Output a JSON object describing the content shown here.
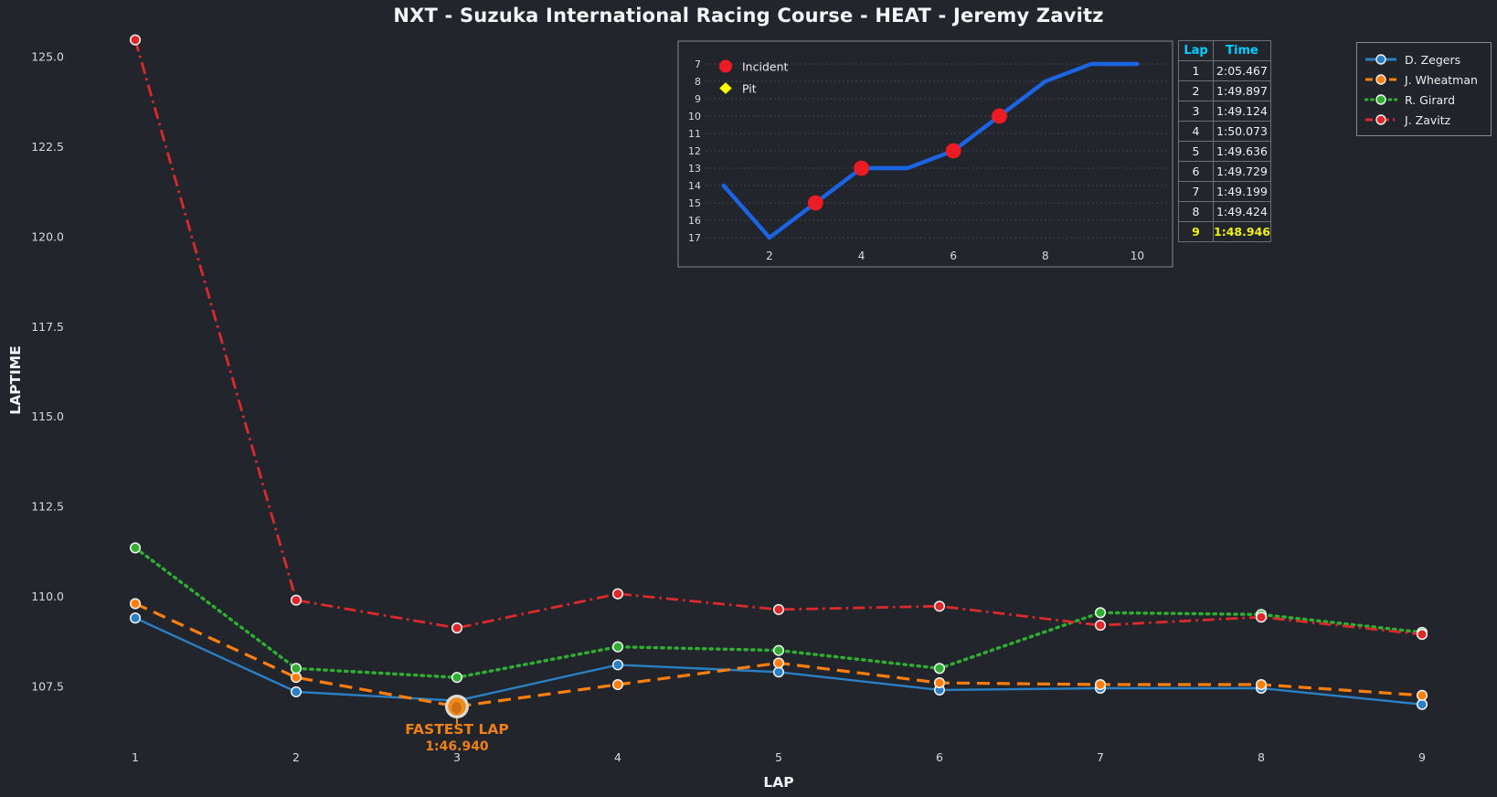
{
  "title": "NXT - Suzuka International Racing Course - HEAT - Jeremy Zavitz",
  "colors": {
    "background": "#22252b",
    "text": "#f0f1f2",
    "tick_text": "#d8dadd",
    "grid_dots": "#45484d",
    "panel_border": "#85888d",
    "table_header": "#00cfff",
    "fastest_row": "#f2f20a",
    "annotation_orange": "#f08018",
    "inset_line_blue": "#1b64e4",
    "incident_red": "#ec1c24",
    "pit_yellow": "#ffff00"
  },
  "chart_data": [
    {
      "type": "line",
      "name": "laptime-by-lap",
      "title": "NXT - Suzuka International Racing Course - HEAT - Jeremy Zavitz",
      "xlabel": "LAP",
      "ylabel": "LAPTIME",
      "x": [
        1,
        2,
        3,
        4,
        5,
        6,
        7,
        8,
        9
      ],
      "xlim": [
        0.65,
        9.45
      ],
      "ylim": [
        106.5,
        125.7
      ],
      "yticks": [
        107.5,
        110.0,
        112.5,
        115.0,
        117.5,
        120.0,
        122.5,
        125.0
      ],
      "grid": false,
      "legend_position": "upper right",
      "series": [
        {
          "name": "D. Zegers",
          "color": "#2a80c4",
          "line_style": "solid",
          "values": [
            109.4,
            107.35,
            107.1,
            108.1,
            107.9,
            107.4,
            107.45,
            107.45,
            107.0
          ]
        },
        {
          "name": "J. Wheatman",
          "color": "#ff7f0e",
          "line_style": "dashed",
          "values": [
            109.8,
            107.75,
            106.94,
            107.55,
            108.15,
            107.6,
            107.55,
            107.55,
            107.25
          ]
        },
        {
          "name": "R. Girard",
          "color": "#2fae32",
          "line_style": "dotted",
          "values": [
            111.35,
            108.0,
            107.75,
            108.6,
            108.5,
            108.0,
            109.55,
            109.5,
            109.0
          ]
        },
        {
          "name": "J. Zavitz",
          "color": "#dc2a2c",
          "line_style": "dashdot",
          "values": [
            125.467,
            109.897,
            109.124,
            110.073,
            109.636,
            109.729,
            109.199,
            109.424,
            108.946
          ]
        }
      ],
      "annotation": {
        "label": "FASTEST LAP",
        "value": "1:46.940",
        "lap": 3,
        "laptime": 106.94
      }
    },
    {
      "type": "line",
      "name": "position-by-lap-inset",
      "x": [
        1,
        2,
        3,
        4,
        5,
        6,
        7,
        8,
        9,
        10
      ],
      "values": [
        14,
        17,
        15,
        13,
        13,
        12,
        10,
        8,
        7,
        7
      ],
      "y_inverted": true,
      "yticks": [
        7,
        8,
        9,
        10,
        11,
        12,
        13,
        14,
        15,
        16,
        17
      ],
      "xticks": [
        2,
        4,
        6,
        8,
        10
      ],
      "grid": true,
      "line_color": "#1b64e4",
      "incidents": [
        {
          "lap": 3,
          "position": 15
        },
        {
          "lap": 4,
          "position": 13
        },
        {
          "lap": 6,
          "position": 12
        },
        {
          "lap": 7,
          "position": 10
        }
      ],
      "pits": [],
      "legend": [
        {
          "label": "Incident",
          "marker": "circle",
          "color": "#ec1c24"
        },
        {
          "label": "Pit",
          "marker": "diamond",
          "color": "#ffff00"
        }
      ]
    }
  ],
  "lap_table": {
    "headers": [
      "Lap",
      "Time"
    ],
    "rows": [
      [
        "1",
        "2:05.467"
      ],
      [
        "2",
        "1:49.897"
      ],
      [
        "3",
        "1:49.124"
      ],
      [
        "4",
        "1:50.073"
      ],
      [
        "5",
        "1:49.636"
      ],
      [
        "6",
        "1:49.729"
      ],
      [
        "7",
        "1:49.199"
      ],
      [
        "8",
        "1:49.424"
      ],
      [
        "9",
        "1:48.946"
      ]
    ],
    "fastest_row_index": 8
  }
}
